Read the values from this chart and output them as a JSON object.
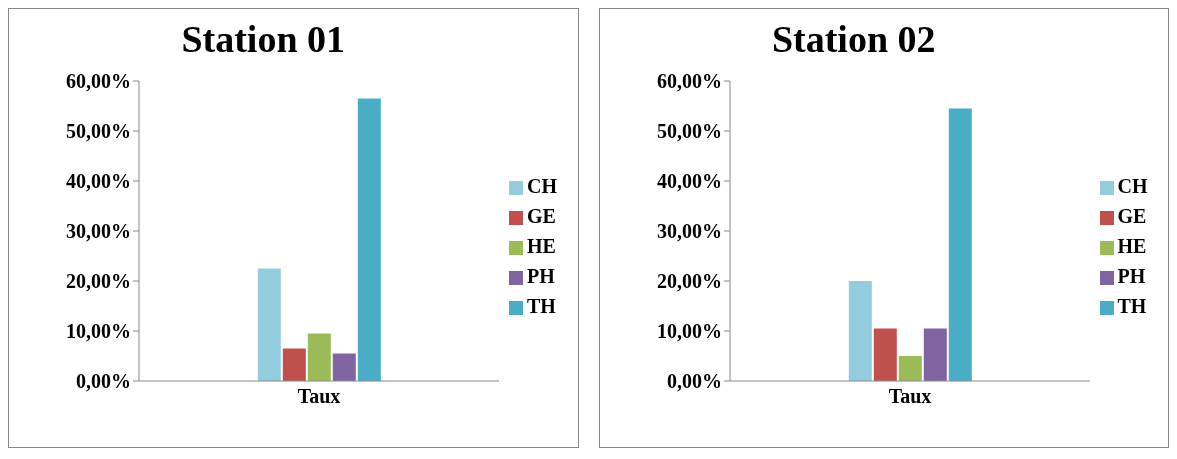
{
  "chart_data": [
    {
      "type": "bar",
      "title": "Station 01",
      "categories": [
        "Taux"
      ],
      "series": [
        {
          "name": "CH",
          "color": "#93cddd",
          "values": [
            22.5
          ]
        },
        {
          "name": "GE",
          "color": "#c0504d",
          "values": [
            6.5
          ]
        },
        {
          "name": "HE",
          "color": "#9bbb59",
          "values": [
            9.5
          ]
        },
        {
          "name": "PH",
          "color": "#8064a2",
          "values": [
            5.5
          ]
        },
        {
          "name": "TH",
          "color": "#4bacc6",
          "values": [
            56.5
          ]
        }
      ],
      "ylim": [
        0,
        60
      ],
      "yticks": [
        {
          "value": 0,
          "label": "0,00%"
        },
        {
          "value": 10,
          "label": "10,00%"
        },
        {
          "value": 20,
          "label": "20,00%"
        },
        {
          "value": 30,
          "label": "30,00%"
        },
        {
          "value": 40,
          "label": "40,00%"
        },
        {
          "value": 50,
          "label": "50,00%"
        },
        {
          "value": 60,
          "label": "60,00%"
        }
      ],
      "grid": false,
      "legend": "right"
    },
    {
      "type": "bar",
      "title": "Station 02",
      "categories": [
        "Taux"
      ],
      "series": [
        {
          "name": "CH",
          "color": "#93cddd",
          "values": [
            20
          ]
        },
        {
          "name": "GE",
          "color": "#c0504d",
          "values": [
            10.5
          ]
        },
        {
          "name": "HE",
          "color": "#9bbb59",
          "values": [
            5
          ]
        },
        {
          "name": "PH",
          "color": "#8064a2",
          "values": [
            10.5
          ]
        },
        {
          "name": "TH",
          "color": "#4bacc6",
          "values": [
            54.5
          ]
        }
      ],
      "ylim": [
        0,
        60
      ],
      "yticks": [
        {
          "value": 0,
          "label": "0,00%"
        },
        {
          "value": 10,
          "label": "10,00%"
        },
        {
          "value": 20,
          "label": "20,00%"
        },
        {
          "value": 30,
          "label": "30,00%"
        },
        {
          "value": 40,
          "label": "40,00%"
        },
        {
          "value": 50,
          "label": "50,00%"
        },
        {
          "value": 60,
          "label": "60,00%"
        }
      ],
      "grid": false,
      "legend": "right"
    }
  ]
}
